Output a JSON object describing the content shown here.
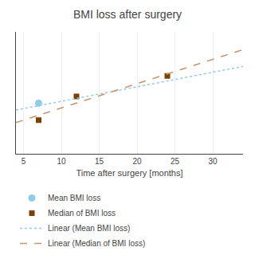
{
  "chart_data": {
    "type": "scatter",
    "title": "BMI loss after surgery",
    "xlabel": "Time after surgery [months]",
    "xlim": [
      4,
      34
    ],
    "ylim": [
      2,
      20
    ],
    "xticks": [
      5,
      10,
      15,
      20,
      25,
      30
    ],
    "yticks": [],
    "grid": true,
    "tick_labels": "x",
    "legend": "bottom",
    "series": [
      {
        "name": "Mean BMI loss",
        "type": "scatter",
        "marker": "circle",
        "color": "#90cce8",
        "x": [
          7
        ],
        "values": [
          9.5
        ]
      },
      {
        "name": "Median of BMI loss",
        "type": "scatter",
        "marker": "square",
        "color": "#7b3f00",
        "x": [
          7,
          12,
          24
        ],
        "values": [
          7.0,
          10.5,
          13.5
        ]
      },
      {
        "name": "Linear (Mean BMI loss)",
        "type": "line",
        "line_style": "dot",
        "color": "#90cce8",
        "x": [
          4,
          34
        ],
        "values": [
          8.486,
          14.906
        ]
      },
      {
        "name": "Linear (Median of BMI loss)",
        "type": "line",
        "line_style": "dash",
        "color": "#c8956c",
        "x": [
          4,
          34
        ],
        "values": [
          6.633188,
          17.375546
        ]
      }
    ]
  }
}
